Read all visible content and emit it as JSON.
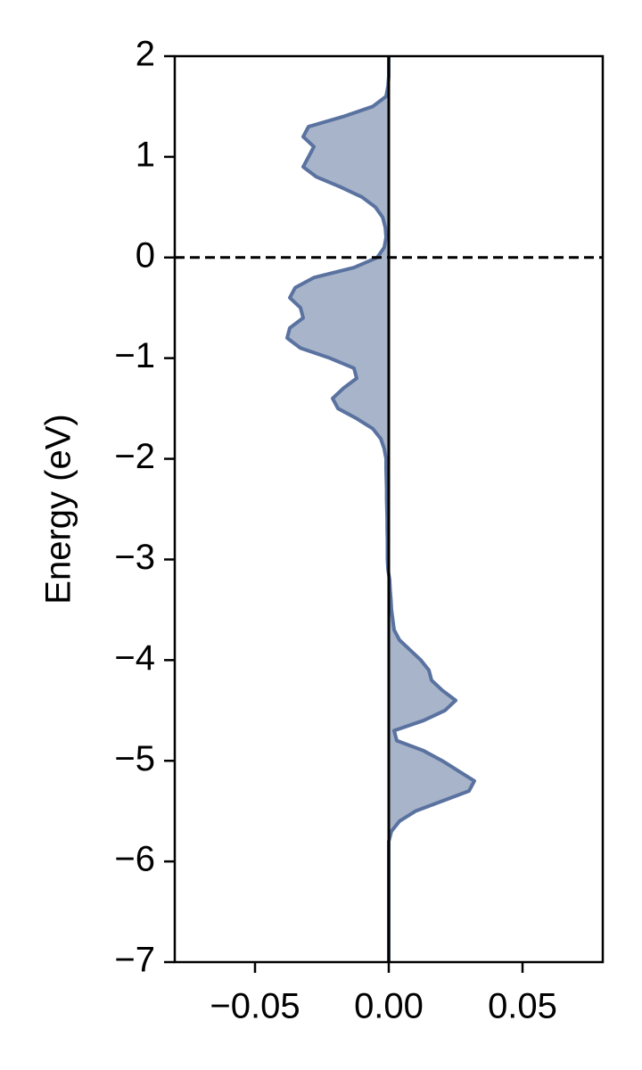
{
  "chart_data": {
    "type": "line",
    "orientation": "vertical",
    "fill": true,
    "ylabel": "Energy (eV)",
    "y": [
      -7,
      -6.9,
      -6.8,
      -6.7,
      -6.6,
      -6.5,
      -6.4,
      -6.3,
      -6.2,
      -6.1,
      -6,
      -5.9,
      -5.8,
      -5.7,
      -5.6,
      -5.5,
      -5.4,
      -5.3,
      -5.2,
      -5.1,
      -5,
      -4.9,
      -4.8,
      -4.7,
      -4.6,
      -4.5,
      -4.4,
      -4.3,
      -4.2,
      -4.1,
      -4,
      -3.9,
      -3.8,
      -3.7,
      -3.6,
      -3.5,
      -3.4,
      -3.3,
      -3.2,
      -3.1,
      -3,
      -2.9,
      -2.8,
      -2.7,
      -2.6,
      -2.5,
      -2.4,
      -2.3,
      -2.2,
      -2.1,
      -2,
      -1.9,
      -1.8,
      -1.7,
      -1.6,
      -1.5,
      -1.4,
      -1.3,
      -1.2,
      -1.1,
      -1,
      -0.9,
      -0.8,
      -0.7,
      -0.6,
      -0.5,
      -0.4,
      -0.3,
      -0.2,
      -0.1,
      0,
      0.1,
      0.2,
      0.3,
      0.4,
      0.5,
      0.6,
      0.7,
      0.8,
      0.9,
      1,
      1.1,
      1.2,
      1.3,
      1.4,
      1.5,
      1.6,
      1.7,
      1.8,
      1.9,
      2
    ],
    "series": [
      {
        "color": "#5a72a0",
        "fill_color": "#a7b4c9",
        "values": [
          0,
          0,
          0,
          0,
          0,
          0,
          0,
          0,
          0,
          0,
          0,
          0,
          0,
          0.001,
          0.004,
          0.01,
          0.02,
          0.03,
          0.032,
          0.026,
          0.02,
          0.013,
          0.003,
          0.002,
          0.013,
          0.021,
          0.025,
          0.02,
          0.016,
          0.015,
          0.012,
          0.008,
          0.004,
          0.002,
          0.0015,
          0.001,
          0.0008,
          0.0005,
          0.0003,
          -0.0003,
          -0.0005,
          -0.0005,
          -0.0005,
          -0.0006,
          -0.0006,
          -0.0007,
          -0.0008,
          -0.0008,
          -0.0009,
          -0.001,
          -0.001,
          -0.0017,
          -0.003,
          -0.006,
          -0.012,
          -0.019,
          -0.021,
          -0.017,
          -0.012,
          -0.013,
          -0.022,
          -0.033,
          -0.038,
          -0.037,
          -0.032,
          -0.033,
          -0.037,
          -0.035,
          -0.028,
          -0.013,
          -0.0043,
          -0.0017,
          -0.001,
          -0.0013,
          -0.0023,
          -0.005,
          -0.01,
          -0.018,
          -0.027,
          -0.032,
          -0.03,
          -0.028,
          -0.032,
          -0.03,
          -0.017,
          -0.006,
          -0.001,
          -0.0003,
          0,
          0,
          0
        ]
      }
    ],
    "xlim": [
      -0.08,
      0.08
    ],
    "ylim": [
      -7,
      2
    ],
    "xticks": [
      {
        "value": -0.05,
        "label": "−0.05"
      },
      {
        "value": 0,
        "label": "0.00"
      },
      {
        "value": 0.05,
        "label": "0.05"
      }
    ],
    "yticks": [
      {
        "value": -7,
        "label": "−7"
      },
      {
        "value": -6,
        "label": "−6"
      },
      {
        "value": -5,
        "label": "−5"
      },
      {
        "value": -4,
        "label": "−4"
      },
      {
        "value": -3,
        "label": "−3"
      },
      {
        "value": -2,
        "label": "−2"
      },
      {
        "value": -1,
        "label": "−1"
      },
      0,
      1,
      2
    ],
    "vline": 0,
    "hline": 0
  }
}
